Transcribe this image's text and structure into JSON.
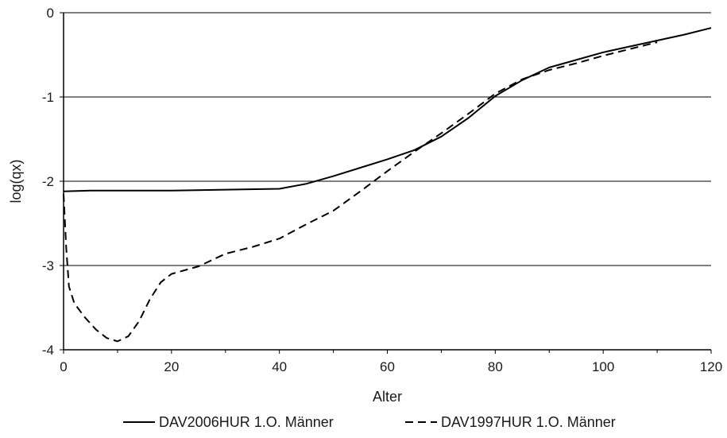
{
  "chart_data": {
    "type": "line",
    "xlabel": "Alter",
    "ylabel": "log(qx)",
    "xlim": [
      0,
      120
    ],
    "ylim": [
      -4,
      0
    ],
    "x_ticks": [
      0,
      20,
      40,
      60,
      80,
      100,
      120
    ],
    "y_ticks": [
      0,
      -1,
      -2,
      -3,
      -4
    ],
    "grid": "horizontal",
    "legend_position": "bottom",
    "series": [
      {
        "name": "DAV2006HUR 1.O. Männer",
        "style": "solid",
        "color": "#000000",
        "x": [
          0,
          5,
          10,
          20,
          30,
          40,
          45,
          50,
          55,
          60,
          65,
          70,
          75,
          80,
          85,
          90,
          95,
          100,
          105,
          110,
          115,
          120
        ],
        "y": [
          -2.12,
          -2.11,
          -2.11,
          -2.11,
          -2.1,
          -2.09,
          -2.03,
          -1.94,
          -1.84,
          -1.74,
          -1.63,
          -1.47,
          -1.25,
          -0.99,
          -0.8,
          -0.65,
          -0.56,
          -0.47,
          -0.4,
          -0.33,
          -0.26,
          -0.18
        ]
      },
      {
        "name": "DAV1997HUR 1.O. Männer",
        "style": "dashed",
        "color": "#000000",
        "x": [
          0,
          0.5,
          1,
          2,
          4,
          6,
          8,
          10,
          12,
          14,
          16,
          18,
          20,
          25,
          30,
          35,
          40,
          45,
          50,
          55,
          60,
          65,
          70,
          75,
          80,
          85,
          90,
          95,
          100,
          105,
          110
        ],
        "y": [
          -2.15,
          -2.8,
          -3.25,
          -3.45,
          -3.62,
          -3.76,
          -3.86,
          -3.9,
          -3.84,
          -3.66,
          -3.4,
          -3.2,
          -3.1,
          -3.01,
          -2.86,
          -2.78,
          -2.68,
          -2.51,
          -2.35,
          -2.12,
          -1.88,
          -1.65,
          -1.43,
          -1.2,
          -0.96,
          -0.79,
          -0.68,
          -0.6,
          -0.51,
          -0.43,
          -0.35
        ]
      }
    ]
  }
}
